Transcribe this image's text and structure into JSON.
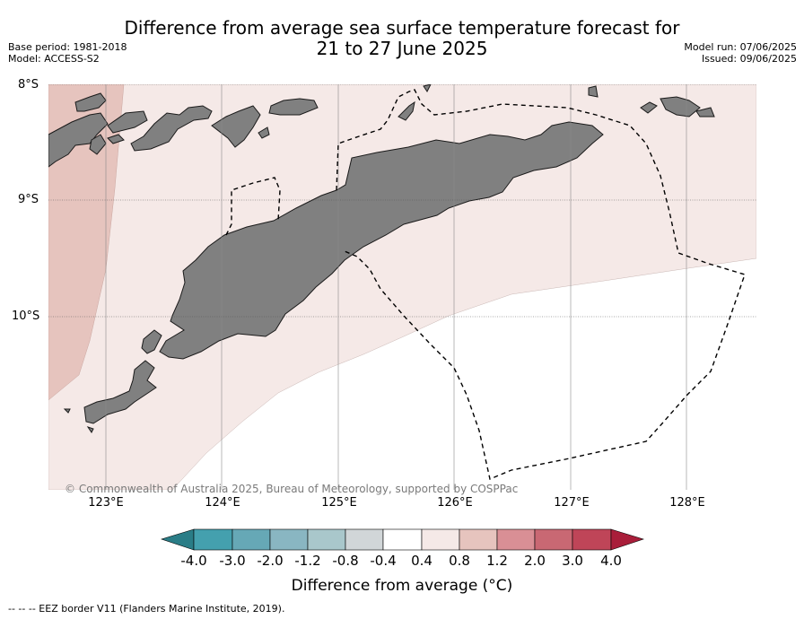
{
  "title": {
    "line1": "Difference from average sea surface temperature forecast for",
    "line2": "21 to 27 June 2025"
  },
  "meta_left": {
    "base_period": "Base period: 1981-2018",
    "model": "Model: ACCESS-S2"
  },
  "meta_right": {
    "model_run": "Model run: 07/06/2025",
    "issued": "Issued: 09/06/2025"
  },
  "map": {
    "lat_labels": [
      "8°S",
      "9°S",
      "10°S"
    ],
    "lon_labels": [
      "123°E",
      "124°E",
      "125°E",
      "126°E",
      "127°E",
      "128°E"
    ],
    "credit": "© Commonwealth of Australia 2025, Bureau of Meteorology, supported by COSPPac",
    "land_color": "#808080",
    "gridlines": true
  },
  "colorbar": {
    "ticks": [
      "-4.0",
      "-3.0",
      "-2.0",
      "-1.2",
      "-0.8",
      "-0.4",
      "0.4",
      "0.8",
      "1.2",
      "2.0",
      "3.0",
      "4.0"
    ],
    "colors": [
      "#2a7d87",
      "#44a0ae",
      "#66a8b6",
      "#89b6c2",
      "#a9c7cb",
      "#d1d6d8",
      "#ffffff",
      "#f5e9e7",
      "#e6c4be",
      "#d98f95",
      "#c96873",
      "#bf4558",
      "#a91e3a"
    ],
    "title": "Difference from average (°C)"
  },
  "footnote": "--  --  -- EEZ border V11 (Flanders Marine Institute, 2019)."
}
